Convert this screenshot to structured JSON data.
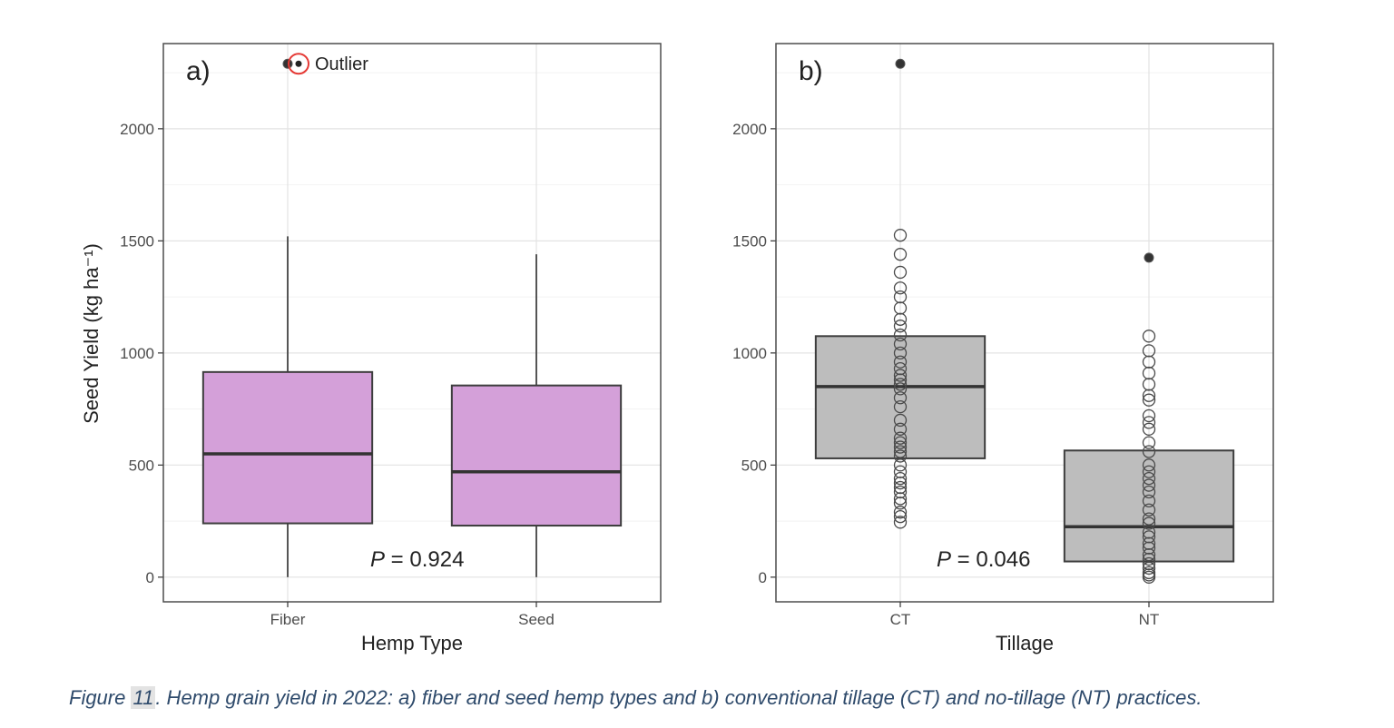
{
  "chart_data": [
    {
      "type": "box",
      "panel_label": "a)",
      "ylabel": "Seed Yield (kg ha⁻¹)",
      "xlabel": "Hemp Type",
      "ylim": [
        -110,
        2380
      ],
      "yticks": [
        0,
        500,
        1000,
        1500,
        2000
      ],
      "grid": true,
      "categories": [
        "Fiber",
        "Seed"
      ],
      "fill_color": "#d4a0d9",
      "boxes": [
        {
          "category": "Fiber",
          "min": 0,
          "q1": 240,
          "median": 550,
          "q3": 915,
          "max": 1520
        },
        {
          "category": "Seed",
          "min": 0,
          "q1": 230,
          "median": 470,
          "q3": 855,
          "max": 1440
        }
      ],
      "outlier_points": [
        {
          "category": "Fiber",
          "value": 2290
        }
      ],
      "legend": {
        "label": "Outlier",
        "marker_color": "#e53935",
        "position": "top"
      },
      "annotation": {
        "prefix": "P",
        "text": " = 0.924"
      }
    },
    {
      "type": "box",
      "panel_label": "b)",
      "ylabel": "",
      "xlabel": "Tillage",
      "ylim": [
        -110,
        2380
      ],
      "yticks": [
        0,
        500,
        1000,
        1500,
        2000
      ],
      "grid": true,
      "categories": [
        "CT",
        "NT"
      ],
      "fill_color": "#bdbdbd",
      "boxes": [
        {
          "category": "CT",
          "q1": 530,
          "median": 850,
          "q3": 1075
        },
        {
          "category": "NT",
          "q1": 70,
          "median": 225,
          "q3": 565
        }
      ],
      "outlier_points": [
        {
          "category": "CT",
          "value": 2290
        },
        {
          "category": "NT",
          "value": 1425
        }
      ],
      "observations": [
        {
          "category": "CT",
          "values": [
            1525,
            1440,
            1360,
            1290,
            1250,
            1200,
            1150,
            1120,
            1080,
            1040,
            1000,
            960,
            930,
            900,
            880,
            860,
            840,
            800,
            760,
            700,
            660,
            620,
            600,
            580,
            560,
            540,
            500,
            470,
            440,
            420,
            400,
            380,
            350,
            330,
            290,
            270,
            245
          ]
        },
        {
          "category": "NT",
          "values": [
            1075,
            1010,
            960,
            910,
            860,
            810,
            790,
            720,
            690,
            660,
            600,
            560,
            500,
            470,
            440,
            410,
            380,
            340,
            300,
            260,
            240,
            200,
            180,
            150,
            130,
            100,
            80,
            60,
            40,
            20,
            10,
            0
          ]
        }
      ],
      "annotation": {
        "prefix": "P",
        "text": " = 0.046"
      }
    }
  ],
  "caption": {
    "prefix": "Figure ",
    "number": "11",
    "text": ". Hemp grain yield in 2022: a) fiber and seed hemp types and b) conventional tillage (CT) and no-tillage (NT) practices."
  }
}
